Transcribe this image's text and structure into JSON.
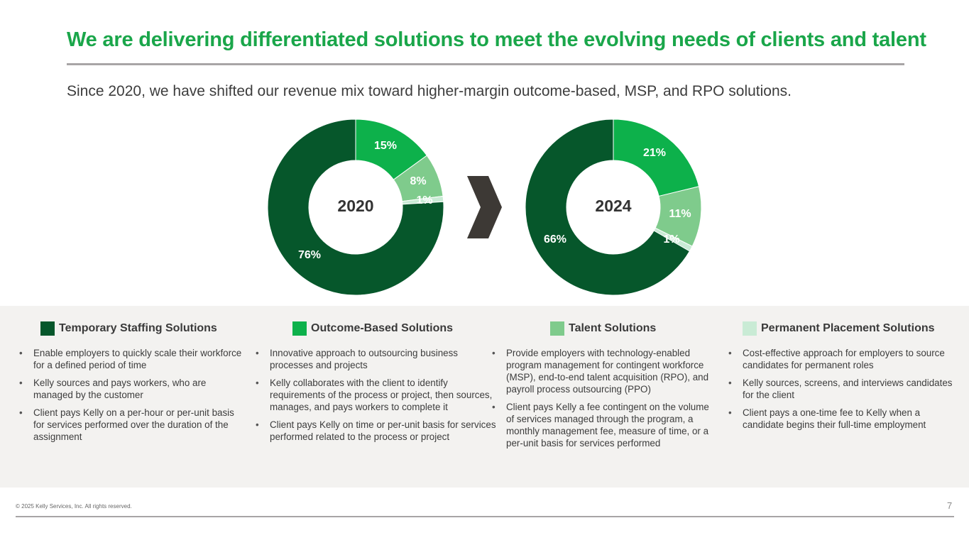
{
  "header": {
    "title": "We are delivering differentiated solutions to meet the evolving needs of clients and talent",
    "subtitle": "Since 2020, we have shifted our revenue mix toward higher-margin outcome-based, MSP, and RPO solutions."
  },
  "colors": {
    "title_green": "#1aa64a",
    "temporary": "#06572b",
    "outcome": "#0db14b",
    "talent": "#7fcb8c",
    "permanent": "#c9ebd5",
    "arrow": "#3d3935"
  },
  "chart_data": [
    {
      "type": "pie",
      "variant": "donut",
      "center_label": "2020",
      "categories": [
        "Outcome-Based Solutions",
        "Talent Solutions",
        "Permanent Placement Solutions",
        "Temporary Staffing Solutions"
      ],
      "values": [
        15,
        8,
        1,
        76
      ],
      "data_labels": [
        "15%",
        "8%",
        "1%",
        "76%"
      ]
    },
    {
      "type": "pie",
      "variant": "donut",
      "center_label": "2024",
      "categories": [
        "Outcome-Based Solutions",
        "Talent Solutions",
        "Permanent Placement Solutions",
        "Temporary Staffing Solutions"
      ],
      "values": [
        21,
        11,
        1,
        66
      ],
      "data_labels": [
        "21%",
        "11%",
        "1%",
        "66%"
      ]
    }
  ],
  "transition_icon": "chevron-right-icon",
  "solutions": [
    {
      "label": "Temporary Staffing Solutions",
      "color": "#06572b",
      "bullets": [
        "Enable employers to quickly scale their workforce for a defined period of time",
        "Kelly sources and pays workers, who are managed by the customer",
        "Client pays Kelly on a per-hour or per-unit basis for services performed over the duration of the assignment"
      ]
    },
    {
      "label": "Outcome-Based Solutions",
      "color": "#0db14b",
      "bullets": [
        "Innovative approach to outsourcing business processes and projects",
        "Kelly collaborates with the client to identify requirements of the process or project, then sources, manages, and pays workers to complete it",
        "Client pays Kelly on time or per-unit basis for services performed related to the process or project"
      ]
    },
    {
      "label": "Talent Solutions",
      "color": "#7fcb8c",
      "bullets": [
        "Provide employers with technology-enabled program management for contingent workforce (MSP), end-to-end talent acquisition (RPO), and payroll process outsourcing (PPO)",
        "Client pays Kelly a fee contingent on the volume of services managed through the program, a monthly management fee, measure of time, or a per-unit basis for services performed"
      ]
    },
    {
      "label": "Permanent Placement Solutions",
      "color": "#c9ebd5",
      "bullets": [
        "Cost-effective approach for employers to source candidates for permanent roles",
        "Kelly sources, screens, and interviews candidates for the client",
        "Client pays a one-time fee to Kelly when a candidate begins their full-time employment"
      ]
    }
  ],
  "footer": {
    "copyright": "© 2025 Kelly Services, Inc. All rights reserved.",
    "page_number": "7"
  }
}
